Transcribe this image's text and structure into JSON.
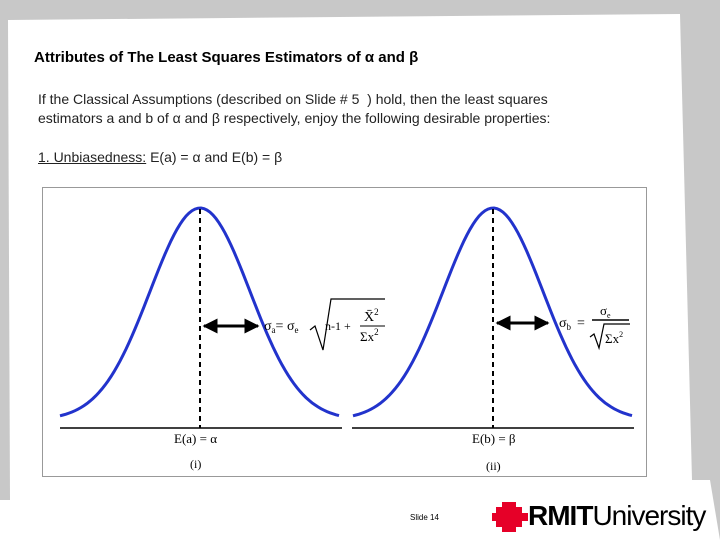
{
  "slide": {
    "title": "Attributes of The Least Squares Estimators of α and β",
    "body": [
      "If the Classical Assumptions (described on Slide # 5  ) hold, then the least squares",
      "estimators a and b of α and β respectively, enjoy the following desirable properties:"
    ],
    "point": {
      "label": "1. Unbiasedness:",
      "text": " E(a) = α and E(b) = β"
    },
    "figure": {
      "left": {
        "axis_label": "E(a) = α",
        "caption": "(i)",
        "lhs": "σ",
        "lhs_sub": "a",
        "eq": "= σ",
        "eq_sub": "e",
        "term": "n-1 +",
        "num": "X̄",
        "num_sup": "2",
        "den": "Σx",
        "den_sup": "2"
      },
      "right": {
        "axis_label": "E(b) = β",
        "caption": "(ii)",
        "lhs": "σ",
        "lhs_sub": "b",
        "eq": "=",
        "num": "σ",
        "num_sub": "e",
        "den": "Σx",
        "den_sup": "2"
      }
    },
    "footer": {
      "slide_number": "Slide 14",
      "logo_bold": "RMIT",
      "logo_light": "University"
    }
  }
}
